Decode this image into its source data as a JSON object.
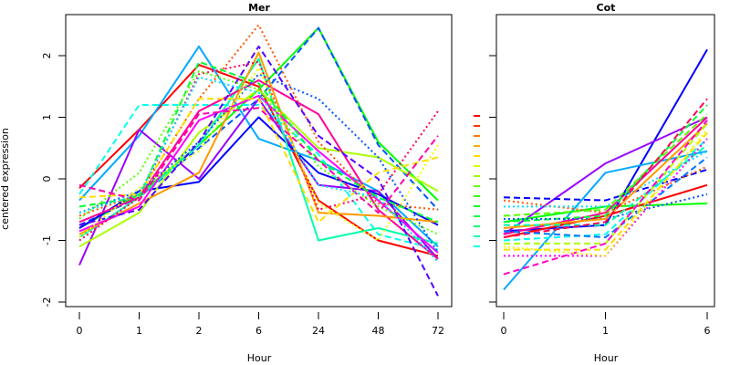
{
  "chart_data": [
    {
      "type": "line",
      "title": "Mer",
      "xlabel": "Hour",
      "ylabel": "centered expression",
      "categories": [
        "0",
        "1",
        "2",
        "6",
        "24",
        "48",
        "72"
      ],
      "yticks": [
        -2,
        -1,
        0,
        1,
        2
      ],
      "ylim": [
        -2.1,
        2.6
      ],
      "grid": false,
      "series": [
        {
          "name": "red-solid",
          "color": "#FF0000",
          "dash": "solid",
          "values": [
            -0.15,
            0.8,
            1.85,
            1.5,
            -0.35,
            -1.0,
            -1.25
          ]
        },
        {
          "name": "sky-solid",
          "color": "#00AAFF",
          "dash": "solid",
          "values": [
            -0.35,
            0.7,
            2.15,
            0.65,
            0.3,
            -0.2,
            -1.1
          ]
        },
        {
          "name": "green-solid",
          "color": "#00FF00",
          "dash": "solid",
          "values": [
            -0.8,
            -0.25,
            0.55,
            1.45,
            2.45,
            0.6,
            -0.35
          ]
        },
        {
          "name": "blue-dashed",
          "color": "#0055FF",
          "dash": "dashed",
          "values": [
            -0.75,
            -0.3,
            0.5,
            1.3,
            2.45,
            0.55,
            -0.5
          ]
        },
        {
          "name": "cyan-dashed",
          "color": "#00FFEE",
          "dash": "dashed",
          "values": [
            -0.25,
            1.2,
            1.2,
            1.2,
            0.4,
            -0.9,
            -1.15
          ]
        },
        {
          "name": "purple-solid",
          "color": "#9900FF",
          "dash": "solid",
          "values": [
            -1.4,
            0.8,
            0.0,
            1.3,
            -0.1,
            -0.2,
            -1.3
          ]
        },
        {
          "name": "blue-solid",
          "color": "#0000FF",
          "dash": "solid",
          "values": [
            -0.8,
            -0.2,
            -0.05,
            1.0,
            0.1,
            -0.25,
            -0.75
          ]
        },
        {
          "name": "lime-solid",
          "color": "#AAFF00",
          "dash": "solid",
          "values": [
            -1.1,
            -0.55,
            0.75,
            1.45,
            0.5,
            0.35,
            -0.2
          ]
        },
        {
          "name": "teal-solid",
          "color": "#00FFAA",
          "dash": "solid",
          "values": [
            -0.95,
            -0.3,
            0.55,
            1.95,
            -1.0,
            -0.8,
            -1.05
          ]
        },
        {
          "name": "pink-solid",
          "color": "#FF0099",
          "dash": "solid",
          "values": [
            -0.7,
            -0.3,
            1.1,
            1.6,
            1.05,
            -0.5,
            -1.3
          ]
        },
        {
          "name": "orange-solid",
          "color": "#FF9900",
          "dash": "solid",
          "values": [
            -0.9,
            -0.4,
            0.1,
            2.05,
            -0.55,
            -0.6,
            -0.7
          ]
        },
        {
          "name": "magenta-solid",
          "color": "#FF00FF",
          "dash": "solid",
          "values": [
            -0.85,
            -0.45,
            0.95,
            1.35,
            0.45,
            -0.35,
            -1.2
          ]
        },
        {
          "name": "orange-dotted",
          "color": "#FF5500",
          "dash": "dotted",
          "values": [
            -0.6,
            -0.25,
            1.3,
            2.5,
            0.6,
            -0.4,
            -0.5
          ]
        },
        {
          "name": "blue-dotted",
          "color": "#0055FF",
          "dash": "dotted",
          "values": [
            -0.55,
            -0.2,
            0.6,
            1.7,
            1.3,
            0.35,
            -1.2
          ]
        },
        {
          "name": "violet-dashed",
          "color": "#5500FF",
          "dash": "dashed",
          "values": [
            -0.75,
            -0.5,
            0.6,
            2.15,
            0.7,
            0.0,
            -1.9
          ]
        },
        {
          "name": "red-dotted",
          "color": "#FF0055",
          "dash": "dotted",
          "values": [
            -1.0,
            -0.3,
            1.7,
            1.9,
            -0.5,
            -0.25,
            1.1
          ]
        },
        {
          "name": "yellow-dashed",
          "color": "#FFDD00",
          "dash": "dashed",
          "values": [
            -0.3,
            -0.25,
            1.3,
            1.3,
            -0.7,
            0.1,
            0.35
          ]
        },
        {
          "name": "yellow-dotted",
          "color": "#EEFF00",
          "dash": "dotted",
          "values": [
            -0.95,
            -0.15,
            0.45,
            1.8,
            -0.4,
            -1.0,
            0.55
          ]
        },
        {
          "name": "green-dashed",
          "color": "#00FF33",
          "dash": "dashed",
          "values": [
            -0.45,
            -0.3,
            1.9,
            1.55,
            0.3,
            -0.3,
            -0.7
          ]
        },
        {
          "name": "spring-dotted",
          "color": "#55FF00",
          "dash": "dotted",
          "values": [
            -0.65,
            0.1,
            1.75,
            1.45,
            0.2,
            -0.45,
            -0.9
          ]
        },
        {
          "name": "magenta-dashed",
          "color": "#FF00AA",
          "dash": "dashed",
          "values": [
            -0.1,
            -0.35,
            1.05,
            1.15,
            0.3,
            -0.55,
            0.7
          ]
        },
        {
          "name": "cyan-dotted",
          "color": "#00DDFF",
          "dash": "dotted",
          "values": [
            -0.55,
            -0.25,
            1.65,
            1.4,
            -0.1,
            -0.3,
            -1.35
          ]
        }
      ]
    },
    {
      "type": "line",
      "title": "Cot",
      "xlabel": "Hour",
      "ylabel": "",
      "categories": [
        "0",
        "1",
        "6"
      ],
      "yticks": [
        -2,
        -1,
        0,
        1,
        2
      ],
      "ylim": [
        -2.1,
        2.6
      ],
      "grid": false,
      "series": [
        {
          "name": "blue-solid",
          "color": "#0000FF",
          "dash": "solid",
          "values": [
            -0.85,
            -0.75,
            2.1
          ]
        },
        {
          "name": "sky-solid",
          "color": "#00AAFF",
          "dash": "solid",
          "values": [
            -1.8,
            0.1,
            0.45
          ]
        },
        {
          "name": "purple-solid",
          "color": "#9900FF",
          "dash": "solid",
          "values": [
            -0.9,
            0.25,
            1.0
          ]
        },
        {
          "name": "green-solid",
          "color": "#00FF00",
          "dash": "solid",
          "values": [
            -0.7,
            -0.45,
            -0.4
          ]
        },
        {
          "name": "red-solid",
          "color": "#FF0000",
          "dash": "solid",
          "values": [
            -0.95,
            -0.6,
            -0.1
          ]
        },
        {
          "name": "pink-solid",
          "color": "#FF0099",
          "dash": "solid",
          "values": [
            -0.9,
            -0.55,
            1.0
          ]
        },
        {
          "name": "blue-dashed",
          "color": "#0000FF",
          "dash": "dashed",
          "values": [
            -0.3,
            -0.35,
            0.15
          ]
        },
        {
          "name": "orange-dotted",
          "color": "#FF5500",
          "dash": "dotted",
          "values": [
            -0.35,
            -0.55,
            0.2
          ]
        },
        {
          "name": "cyan-dotted",
          "color": "#00DDFF",
          "dash": "dotted",
          "values": [
            -0.45,
            -0.45,
            0.45
          ]
        },
        {
          "name": "lime-dashed",
          "color": "#55FF00",
          "dash": "dashed",
          "values": [
            -0.6,
            -0.5,
            1.05
          ]
        },
        {
          "name": "green-dashed",
          "color": "#00FF33",
          "dash": "dashed",
          "values": [
            -0.7,
            -0.6,
            1.2
          ]
        },
        {
          "name": "blue-dotted",
          "color": "#0055FF",
          "dash": "dotted",
          "values": [
            -0.65,
            -0.65,
            -0.25
          ]
        },
        {
          "name": "orange-solid",
          "color": "#FF9900",
          "dash": "solid",
          "values": [
            -0.8,
            -0.65,
            0.9
          ]
        },
        {
          "name": "teal-dashed",
          "color": "#00FFAA",
          "dash": "dashed",
          "values": [
            -0.75,
            -0.75,
            0.55
          ]
        },
        {
          "name": "red-dashed",
          "color": "#FF0055",
          "dash": "dashed",
          "values": [
            -0.95,
            -0.7,
            1.3
          ]
        },
        {
          "name": "cyan-dashed",
          "color": "#00FFEE",
          "dash": "dashed",
          "values": [
            -1.0,
            -0.9,
            0.65
          ]
        },
        {
          "name": "blue2-dashed",
          "color": "#0077FF",
          "dash": "dashed",
          "values": [
            -0.85,
            -0.95,
            0.35
          ]
        },
        {
          "name": "lime-solid2",
          "color": "#AAFF00",
          "dash": "dashed",
          "values": [
            -1.05,
            -1.05,
            0.9
          ]
        },
        {
          "name": "yellow-dashed",
          "color": "#FFDD00",
          "dash": "dashed",
          "values": [
            -1.15,
            -1.15,
            0.75
          ]
        },
        {
          "name": "magenta-dotted",
          "color": "#FF00FF",
          "dash": "dotted",
          "values": [
            -1.25,
            -1.25,
            0.65
          ]
        },
        {
          "name": "magenta-dashed",
          "color": "#FF00CC",
          "dash": "dashed",
          "values": [
            -1.55,
            -1.05,
            0.95
          ]
        },
        {
          "name": "yellow-dotted",
          "color": "#EEFF00",
          "dash": "dotted",
          "values": [
            -1.1,
            -1.25,
            0.8
          ]
        }
      ]
    }
  ],
  "legend_marks": [
    "#FF0000",
    "#FF3300",
    "#FF7700",
    "#FFAA00",
    "#FFDD00",
    "#DDFF00",
    "#99FF00",
    "#66FF00",
    "#33FF00",
    "#00FF22",
    "#00FF44",
    "#00FF77",
    "#00FFAA",
    "#00FFEE"
  ]
}
